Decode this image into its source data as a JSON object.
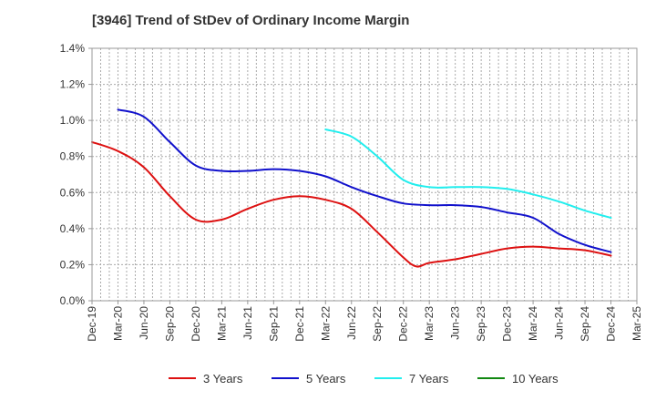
{
  "chart_data": {
    "type": "line",
    "title": "[3946]  Trend of StDev of Ordinary Income Margin",
    "xlabel": "",
    "ylabel": "",
    "x_tick_labels": [
      "Dec-19",
      "Mar-20",
      "Jun-20",
      "Sep-20",
      "Dec-20",
      "Mar-21",
      "Jun-21",
      "Sep-21",
      "Dec-21",
      "Mar-22",
      "Jun-22",
      "Sep-22",
      "Dec-22",
      "Mar-23",
      "Jun-23",
      "Sep-23",
      "Dec-23",
      "Mar-24",
      "Jun-24",
      "Sep-24",
      "Dec-24",
      "Mar-25"
    ],
    "y_tick_labels": [
      "0.0%",
      "0.2%",
      "0.4%",
      "0.6%",
      "0.8%",
      "1.0%",
      "1.2%",
      "1.4%"
    ],
    "ylim": [
      0,
      1.4
    ],
    "y_unit": "%",
    "grid": true,
    "legend_position": "bottom",
    "series": [
      {
        "name": "3 Years",
        "color": "#dd1111",
        "points": [
          [
            0,
            0.88
          ],
          [
            1,
            0.83
          ],
          [
            2,
            0.74
          ],
          [
            3,
            0.58
          ],
          [
            4,
            0.45
          ],
          [
            5,
            0.45
          ],
          [
            6,
            0.51
          ],
          [
            7,
            0.56
          ],
          [
            8,
            0.58
          ],
          [
            9,
            0.56
          ],
          [
            10,
            0.51
          ],
          [
            11,
            0.38
          ],
          [
            12,
            0.24
          ],
          [
            12.5,
            0.19
          ],
          [
            13,
            0.21
          ],
          [
            14,
            0.23
          ],
          [
            15,
            0.26
          ],
          [
            16,
            0.29
          ],
          [
            17,
            0.3
          ],
          [
            18,
            0.29
          ],
          [
            19,
            0.28
          ],
          [
            20,
            0.25
          ]
        ]
      },
      {
        "name": "5 Years",
        "color": "#1111cc",
        "points": [
          [
            1,
            1.06
          ],
          [
            2,
            1.02
          ],
          [
            3,
            0.88
          ],
          [
            4,
            0.75
          ],
          [
            5,
            0.72
          ],
          [
            6,
            0.72
          ],
          [
            7,
            0.73
          ],
          [
            8,
            0.72
          ],
          [
            9,
            0.69
          ],
          [
            10,
            0.63
          ],
          [
            11,
            0.58
          ],
          [
            12,
            0.54
          ],
          [
            13,
            0.53
          ],
          [
            14,
            0.53
          ],
          [
            15,
            0.52
          ],
          [
            16,
            0.49
          ],
          [
            17,
            0.46
          ],
          [
            18,
            0.37
          ],
          [
            19,
            0.31
          ],
          [
            20,
            0.27
          ]
        ]
      },
      {
        "name": "7 Years",
        "color": "#22eeee",
        "points": [
          [
            9,
            0.95
          ],
          [
            10,
            0.91
          ],
          [
            11,
            0.8
          ],
          [
            12,
            0.67
          ],
          [
            13,
            0.63
          ],
          [
            14,
            0.63
          ],
          [
            15,
            0.63
          ],
          [
            16,
            0.62
          ],
          [
            17,
            0.59
          ],
          [
            18,
            0.55
          ],
          [
            19,
            0.5
          ],
          [
            20,
            0.46
          ]
        ]
      },
      {
        "name": "10 Years",
        "color": "#118811",
        "points": []
      }
    ]
  }
}
